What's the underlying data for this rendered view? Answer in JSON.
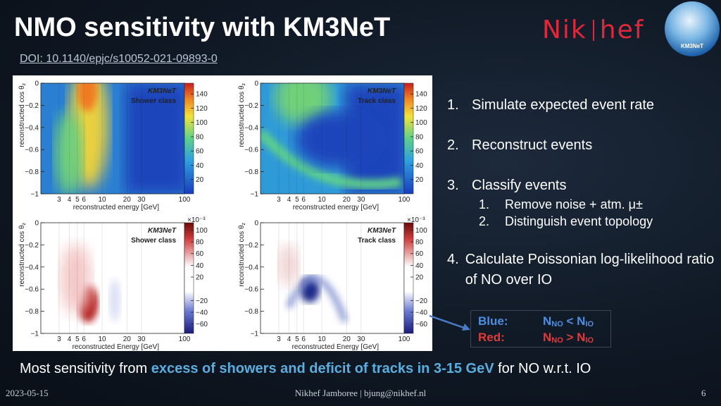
{
  "header": {
    "title": "NMO sensitivity with KM3NeT",
    "doi": "DOI: 10.1140/epjc/s10052-021-09893-0",
    "logo_left": "Nik",
    "logo_right": "hef",
    "badge": "KM3NeT"
  },
  "panels": [
    {
      "label": "KM3NeT",
      "class": "Shower class",
      "ylabel": "reconstructed cos θ",
      "ylabel_sub": "z",
      "xlabel": "reconstructed energy [GeV]",
      "yticks": [
        "0",
        "−0.2",
        "−0.4",
        "−0.6",
        "−0.8",
        "−1"
      ],
      "xticks": [
        "3",
        "4",
        "5",
        "6",
        "10",
        "20",
        "30",
        "100"
      ],
      "cbar": [
        "140",
        "120",
        "100",
        "80",
        "60",
        "40",
        "20"
      ]
    },
    {
      "label": "KM3NeT",
      "class": "Track class",
      "ylabel": "reconstructed cos θ",
      "ylabel_sub": "z",
      "xlabel": "reconstructed energy [GeV]",
      "yticks": [
        "0",
        "−0.2",
        "−0.4",
        "−0.6",
        "−0.8",
        "−1"
      ],
      "xticks": [
        "3",
        "4",
        "5",
        "6",
        "10",
        "20",
        "30",
        "100"
      ],
      "cbar": [
        "140",
        "120",
        "100",
        "80",
        "60",
        "40",
        "20"
      ]
    },
    {
      "label": "KM3NeT",
      "class": "Shower class",
      "ylabel": "reconstructed cos θ",
      "ylabel_sub": "z",
      "xlabel": "reconstructed Energy [GeV]",
      "scale": "×10⁻³",
      "yticks": [
        "0",
        "−0.2",
        "−0.4",
        "−0.6",
        "−0.8",
        "−1"
      ],
      "xticks": [
        "3",
        "4",
        "5",
        "6",
        "10",
        "20",
        "30",
        "100"
      ],
      "cbar": [
        "100",
        "80",
        "60",
        "40",
        "20",
        "−20",
        "−40",
        "−60"
      ]
    },
    {
      "label": "KM3NeT",
      "class": "Track class",
      "ylabel": "reconstructed cos θ",
      "ylabel_sub": "z",
      "xlabel": "reconstructed Energy [GeV]",
      "scale": "×10⁻³",
      "yticks": [
        "0",
        "−0.2",
        "−0.4",
        "−0.6",
        "−0.8",
        "−1"
      ],
      "xticks": [
        "3",
        "4",
        "5",
        "6",
        "10",
        "20",
        "30",
        "100"
      ],
      "cbar": [
        "100",
        "80",
        "60",
        "40",
        "20",
        "−20",
        "−40",
        "−60"
      ]
    }
  ],
  "steps": [
    {
      "number": "1.",
      "text": "Simulate expected event rate"
    },
    {
      "number": "2.",
      "text": "Reconstruct events"
    },
    {
      "number": "3.",
      "text": "Classify events",
      "subitems": [
        {
          "number": "1.",
          "text": "Remove noise + atm. μ±"
        },
        {
          "number": "2.",
          "text": "Distinguish event topology"
        }
      ]
    },
    {
      "number": "4.",
      "text": "Calculate Poissonian log-likelihood ratio of NO over IO"
    }
  ],
  "legend": [
    {
      "label": "Blue:",
      "a": "N",
      "a_sub": "NO",
      "op": " < ",
      "b": "N",
      "b_sub": "IO"
    },
    {
      "label": "Red:",
      "a": "N",
      "a_sub": "NO",
      "op": " > ",
      "b": "N",
      "b_sub": "IO"
    }
  ],
  "conclusion": {
    "before": "Most sensitivity from ",
    "highlight": "excess of showers and deficit of tracks in 3-15 GeV",
    "after": " for NO w.r.t. IO"
  },
  "footer": {
    "date": "2023-05-15",
    "center": "Nikhef Jamboree | bjung@nikhef.nl",
    "page": "6"
  }
}
